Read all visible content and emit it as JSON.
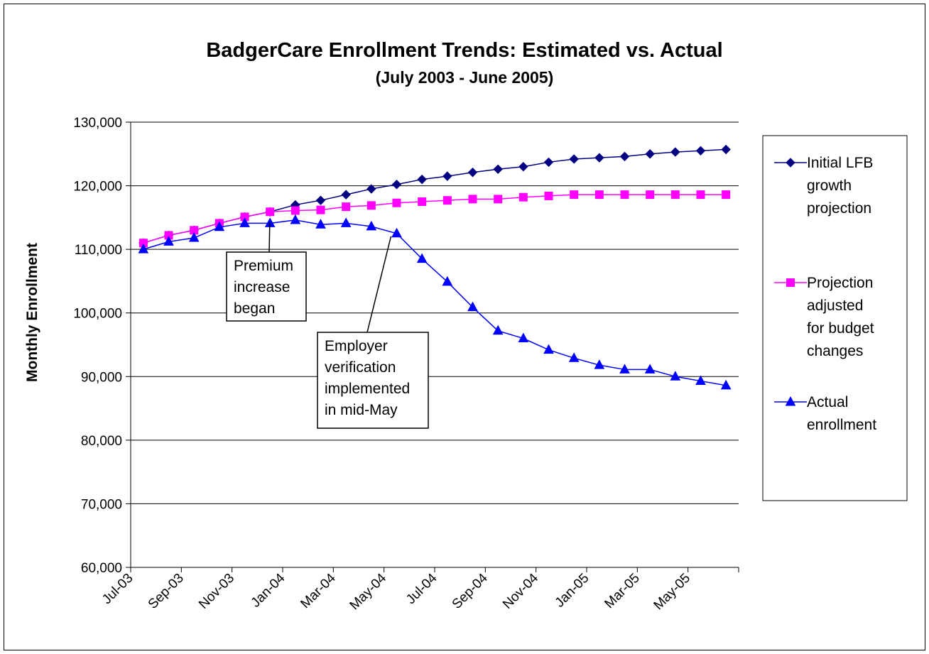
{
  "chart_data": {
    "type": "line",
    "title": "BadgerCare Enrollment Trends:  Estimated vs. Actual",
    "subtitle": "(July 2003 - June 2005)",
    "xlabel": "",
    "ylabel": "Monthly Enrollment",
    "ylim": [
      60000,
      130000
    ],
    "y_ticks": [
      "60,000",
      "70,000",
      "80,000",
      "90,000",
      "100,000",
      "110,000",
      "120,000",
      "130,000"
    ],
    "x_ticks": [
      "Jul-03",
      "Sep-03",
      "Nov-03",
      "Jan-04",
      "Mar-04",
      "May-04",
      "Jul-04",
      "Sep-04",
      "Nov-04",
      "Jan-05",
      "Mar-05",
      "May-05"
    ],
    "grid": "horizontal",
    "legend_position": "right",
    "series": [
      {
        "name": "Initial LFB growth projection",
        "legend_lines": [
          "Initial LFB",
          "growth",
          "projection"
        ],
        "color": "#000080",
        "marker": "diamond",
        "values": [
          111000,
          112200,
          113000,
          114100,
          115100,
          115900,
          117000,
          117700,
          118600,
          119500,
          120200,
          121000,
          121500,
          122100,
          122600,
          123000,
          123700,
          124200,
          124400,
          124600,
          125000,
          125300,
          125500,
          125700
        ]
      },
      {
        "name": "Projection adjusted for budget changes",
        "legend_lines": [
          "Projection",
          "adjusted",
          "for budget",
          "changes"
        ],
        "color": "#ff00ff",
        "marker": "square",
        "values": [
          111000,
          112200,
          113000,
          114100,
          115100,
          115900,
          116100,
          116200,
          116700,
          116900,
          117300,
          117500,
          117700,
          117900,
          117900,
          118200,
          118400,
          118600,
          118600,
          118600,
          118600,
          118600,
          118600,
          118600
        ]
      },
      {
        "name": "Actual enrollment",
        "legend_lines": [
          "Actual",
          "enrollment"
        ],
        "color": "#0000ff",
        "marker": "triangle",
        "values": [
          110000,
          111200,
          111800,
          113500,
          114100,
          114100,
          114600,
          113900,
          114100,
          113600,
          112500,
          108500,
          104900,
          100900,
          97200,
          96000,
          94200,
          92900,
          91800,
          91100,
          91100,
          90000,
          89300,
          88600
        ]
      }
    ],
    "annotations": [
      {
        "lines": [
          "Premium",
          "increase",
          "began"
        ],
        "point_index": 6
      },
      {
        "lines": [
          "Employer",
          "verification",
          "implemented",
          "in mid-May"
        ],
        "point_index": 10
      }
    ]
  }
}
